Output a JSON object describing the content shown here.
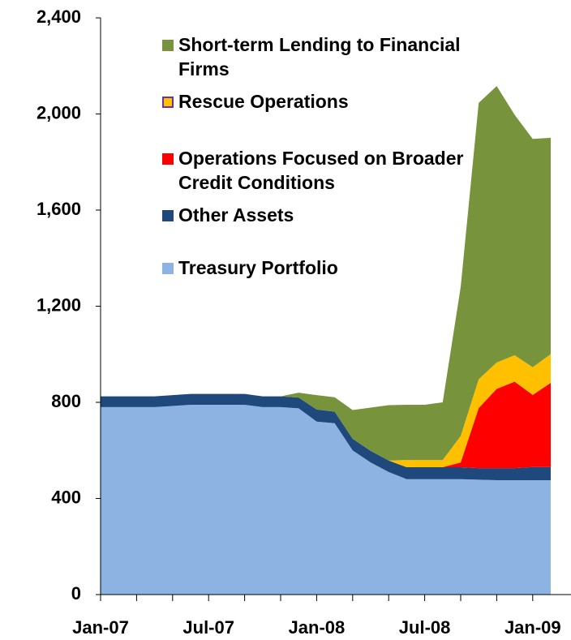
{
  "chart_data": {
    "type": "stacked-area",
    "x": [
      "Jan-07",
      "Feb-07",
      "Mar-07",
      "Apr-07",
      "May-07",
      "Jun-07",
      "Jul-07",
      "Aug-07",
      "Sep-07",
      "Oct-07",
      "Nov-07",
      "Dec-07",
      "Jan-08",
      "Feb-08",
      "Mar-08",
      "Apr-08",
      "May-08",
      "Jun-08",
      "Jul-08",
      "Aug-08",
      "Sep-08",
      "Oct-08",
      "Nov-08",
      "Dec-08",
      "Jan-09",
      "Feb-09"
    ],
    "xticks": [
      "Jan-07",
      "Jul-07",
      "Jan-08",
      "Jul-08",
      "Jan-09"
    ],
    "ylim": [
      0,
      2400
    ],
    "yticks": [
      0,
      {
        "value": 400,
        "label": "400"
      },
      {
        "value": 800,
        "label": "800"
      },
      {
        "value": 1200,
        "label": "1,200"
      },
      {
        "value": 1600,
        "label": "1,600"
      },
      {
        "value": 2000,
        "label": "2,000"
      },
      {
        "value": 2400,
        "label": "2,400"
      }
    ],
    "series": [
      {
        "name": "Treasury Portfolio",
        "color": "#8db3e2",
        "values": [
          780,
          780,
          780,
          780,
          785,
          790,
          790,
          790,
          790,
          780,
          780,
          775,
          720,
          713,
          600,
          550,
          510,
          480,
          480,
          480,
          480,
          478,
          476,
          476,
          476,
          476
        ]
      },
      {
        "name": "Other Assets",
        "color": "#1f497d",
        "values": [
          45,
          45,
          45,
          45,
          45,
          45,
          45,
          45,
          45,
          45,
          45,
          45,
          50,
          48,
          48,
          48,
          48,
          50,
          50,
          50,
          50,
          48,
          50,
          50,
          55,
          55
        ]
      },
      {
        "name": "Operations Focused on Broader Credit Conditions",
        "color": "#ff0000",
        "values": [
          0,
          0,
          0,
          0,
          0,
          0,
          0,
          0,
          0,
          0,
          0,
          0,
          0,
          0,
          0,
          0,
          0,
          0,
          0,
          0,
          20,
          250,
          330,
          360,
          300,
          350
        ]
      },
      {
        "name": "Rescue Operations",
        "color": "#ffc000",
        "values": [
          0,
          0,
          0,
          0,
          0,
          0,
          0,
          0,
          0,
          0,
          0,
          0,
          0,
          0,
          0,
          0,
          0,
          30,
          30,
          30,
          110,
          120,
          110,
          110,
          115,
          120
        ]
      },
      {
        "name": "Short-term Lending to Financial Firms",
        "color": "#77933c",
        "values": [
          0,
          0,
          0,
          0,
          0,
          0,
          0,
          0,
          0,
          0,
          0,
          20,
          60,
          60,
          120,
          180,
          230,
          230,
          230,
          240,
          620,
          1150,
          1150,
          1000,
          950,
          900
        ]
      }
    ]
  }
}
